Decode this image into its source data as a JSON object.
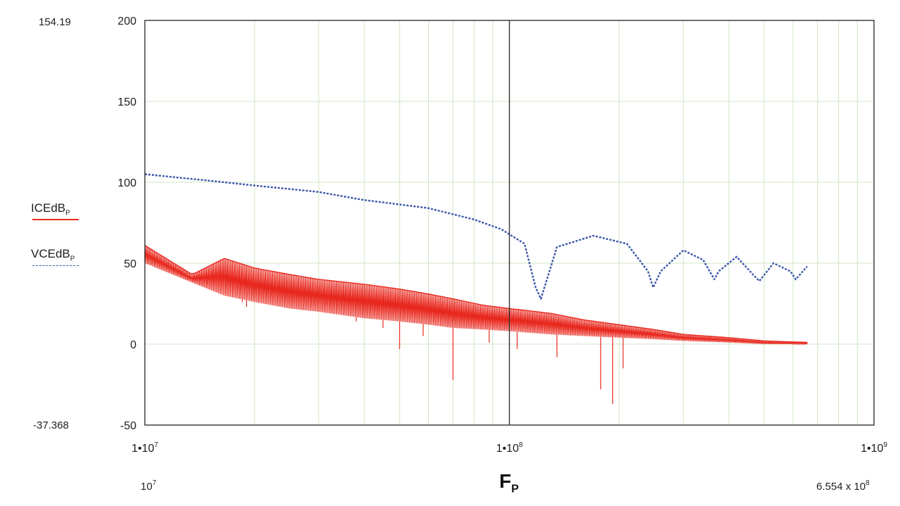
{
  "chart_data": {
    "type": "line",
    "xscale": "log",
    "xlim": [
      10000000,
      1000000000
    ],
    "ylim": [
      -50,
      200
    ],
    "grid": true,
    "x_ticks": [
      {
        "value": 10000000,
        "label": "1•10",
        "exp": "7"
      },
      {
        "value": 100000000,
        "label": "1•10",
        "exp": "8"
      },
      {
        "value": 1000000000,
        "label": "1•10",
        "exp": "9"
      }
    ],
    "y_ticks": [
      {
        "value": 200,
        "label": "200"
      },
      {
        "value": 150,
        "label": "150"
      },
      {
        "value": 100,
        "label": "100"
      },
      {
        "value": 50,
        "label": "50"
      },
      {
        "value": 0,
        "label": "0"
      },
      {
        "value": -50,
        "label": "-50"
      }
    ],
    "x_range_start_label": "10",
    "x_range_start_exp": "7",
    "x_range_end_label": "6.554 x 10",
    "x_range_end_exp": "8",
    "y_range_top_label": "154.19",
    "y_range_bottom_label": "-37.368",
    "xlabel": "F",
    "xlabel_sub": "P",
    "series": [
      {
        "name": "ICEdB",
        "name_sub": "P",
        "color": "#e8281e",
        "style": "solid",
        "x": [
          10000000,
          13500000,
          16500000,
          20000000,
          25000000,
          30000000,
          40000000,
          50000000,
          60000000,
          70000000,
          85000000,
          100000000,
          130000000,
          160000000,
          200000000,
          250000000,
          300000000,
          400000000,
          500000000,
          655400000
        ],
        "y_upper": [
          61,
          43,
          53,
          47,
          43,
          40,
          37,
          34,
          31,
          28,
          24,
          22,
          19,
          15,
          12,
          9,
          6,
          4,
          2,
          1
        ],
        "y_lower": [
          50,
          38,
          30,
          26,
          22,
          20,
          16,
          14,
          12,
          10,
          9,
          8,
          6,
          5,
          4,
          3,
          2,
          1,
          0,
          0
        ],
        "y_dips": [
          [
            18500000,
            26
          ],
          [
            19000000,
            23
          ],
          [
            27000000,
            22
          ],
          [
            33000000,
            19
          ],
          [
            38000000,
            14
          ],
          [
            45000000,
            10
          ],
          [
            50000000,
            -3
          ],
          [
            58000000,
            5
          ],
          [
            70000000,
            -22
          ],
          [
            88000000,
            1
          ],
          [
            105000000,
            -3
          ],
          [
            135000000,
            -8
          ],
          [
            178000000,
            -28
          ],
          [
            192000000,
            -37
          ],
          [
            205000000,
            -15
          ],
          [
            250000000,
            3
          ],
          [
            320000000,
            2
          ]
        ]
      },
      {
        "name": "VCEdB",
        "name_sub": "P",
        "color": "#3a55a8",
        "style": "dashed",
        "x": [
          10000000,
          15000000,
          20000000,
          30000000,
          40000000,
          60000000,
          80000000,
          95000000,
          110000000,
          118000000,
          122000000,
          135000000,
          170000000,
          210000000,
          240000000,
          248000000,
          260000000,
          300000000,
          340000000,
          365000000,
          375000000,
          420000000,
          470000000,
          485000000,
          530000000,
          590000000,
          610000000,
          655400000
        ],
        "y": [
          105,
          101,
          98,
          94,
          89,
          84,
          77,
          71,
          62,
          35,
          28,
          60,
          67,
          62,
          45,
          35,
          45,
          58,
          52,
          40,
          45,
          54,
          42,
          39,
          50,
          45,
          40,
          48
        ]
      }
    ]
  }
}
